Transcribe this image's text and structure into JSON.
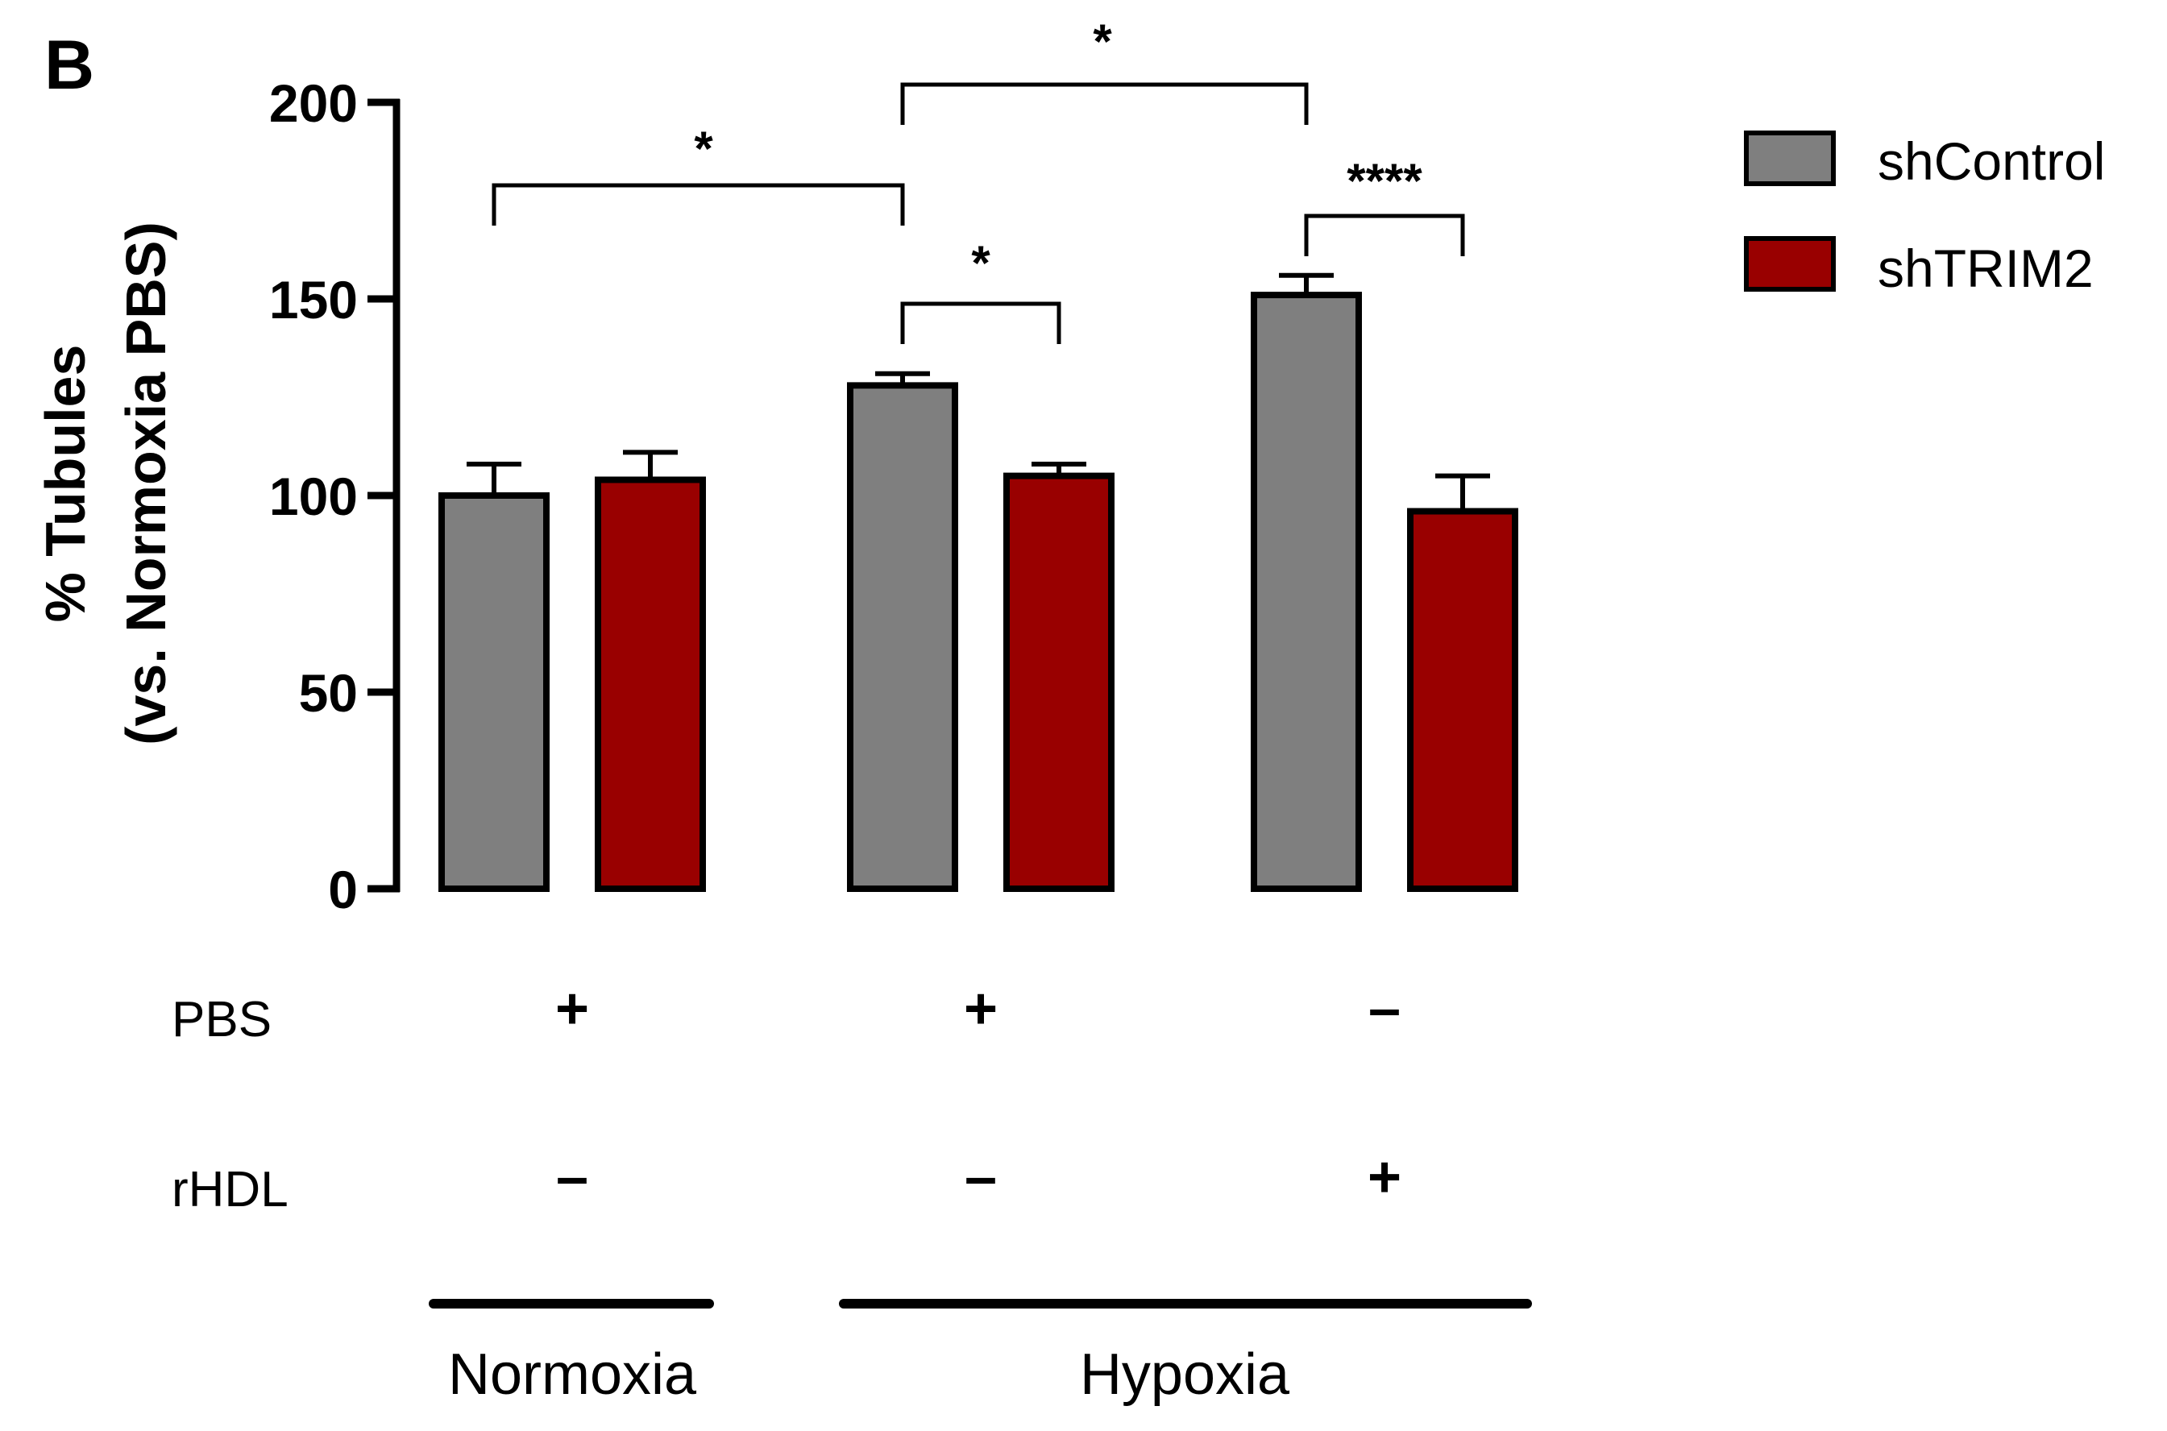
{
  "panel_label": "B",
  "chart_data": {
    "type": "bar",
    "title": "",
    "ylabel": [
      "% Tubules",
      "(vs. Normoxia PBS)"
    ],
    "ylim": [
      0,
      200
    ],
    "yticks": [
      0,
      50,
      100,
      150,
      200
    ],
    "categories": [
      "Normoxia PBS",
      "Hypoxia PBS",
      "Hypoxia rHDL"
    ],
    "series": [
      {
        "name": "shControl",
        "color": "#7f7f7f",
        "values": [
          100,
          128,
          151
        ],
        "errors": [
          8,
          3,
          5
        ]
      },
      {
        "name": "shTRIM2",
        "color": "#990000",
        "values": [
          104,
          105,
          96
        ],
        "errors": [
          7,
          3,
          9
        ]
      }
    ],
    "legend": {
      "position": "top-right",
      "entries": [
        "shControl",
        "shTRIM2"
      ]
    },
    "significance": [
      {
        "from": [
          0,
          0
        ],
        "to": [
          1,
          0
        ],
        "label": "*"
      },
      {
        "from": [
          1,
          0
        ],
        "to": [
          2,
          0
        ],
        "label": "*"
      },
      {
        "from": [
          1,
          0
        ],
        "to": [
          1,
          1
        ],
        "label": "*"
      },
      {
        "from": [
          2,
          0
        ],
        "to": [
          2,
          1
        ],
        "label": "****"
      }
    ],
    "treatments": [
      {
        "label": "PBS",
        "values": [
          "+",
          "+",
          "–"
        ]
      },
      {
        "label": "rHDL",
        "values": [
          "–",
          "–",
          "+"
        ]
      }
    ],
    "groups": [
      {
        "label": "Normoxia",
        "categories": [
          0
        ]
      },
      {
        "label": "Hypoxia",
        "categories": [
          1,
          2
        ]
      }
    ]
  }
}
